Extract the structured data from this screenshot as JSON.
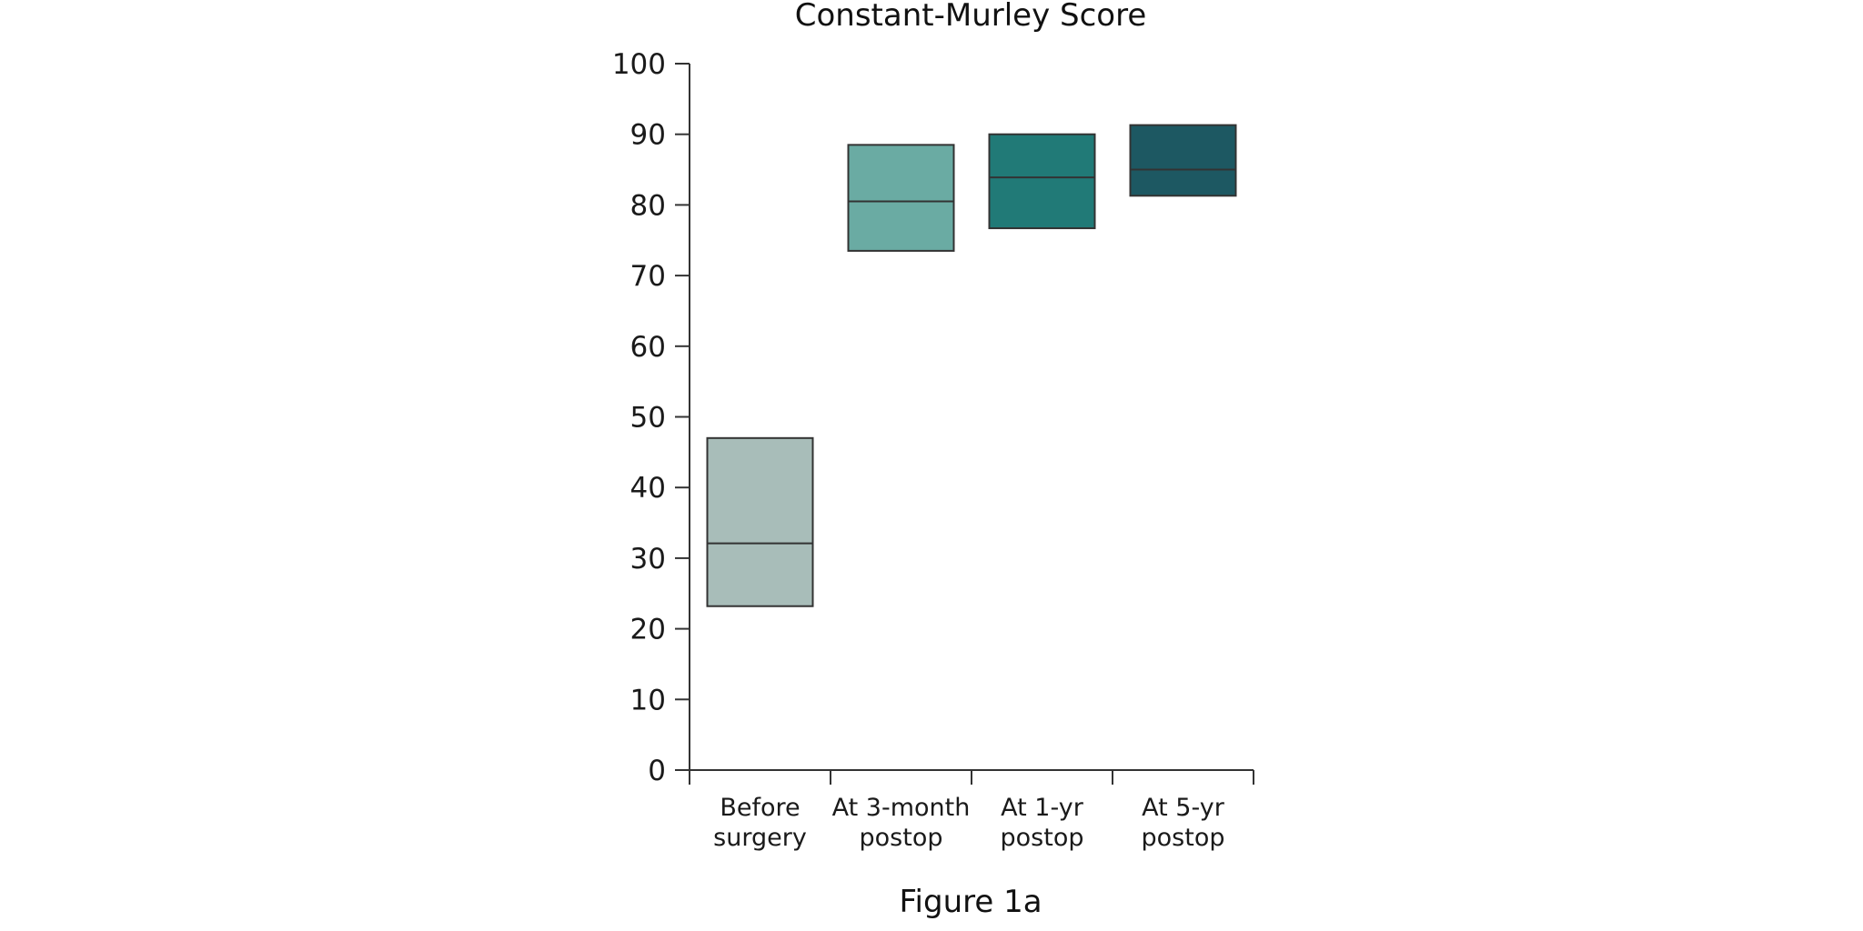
{
  "chart_data": {
    "type": "box",
    "title": "Constant-Murley Score",
    "ylim": [
      0,
      100
    ],
    "yticks": [
      0,
      10,
      20,
      30,
      40,
      50,
      60,
      70,
      80,
      90,
      100
    ],
    "categories": [
      [
        "Before",
        "surgery"
      ],
      [
        "At 3-month",
        "postop"
      ],
      [
        "At 1-yr",
        "postop"
      ],
      [
        "At 5-yr",
        "postop"
      ]
    ],
    "boxes": [
      {
        "q1": 23.2,
        "median": 32.1,
        "q3": 47.0,
        "color": "#a8bdb9"
      },
      {
        "q1": 73.5,
        "median": 80.5,
        "q3": 88.5,
        "color": "#6aaba3"
      },
      {
        "q1": 76.7,
        "median": 83.9,
        "q3": 90.0,
        "color": "#217a77"
      },
      {
        "q1": 81.3,
        "median": 85.0,
        "q3": 91.3,
        "color": "#1d5862"
      }
    ],
    "grid": false
  },
  "caption": "Figure 1a"
}
